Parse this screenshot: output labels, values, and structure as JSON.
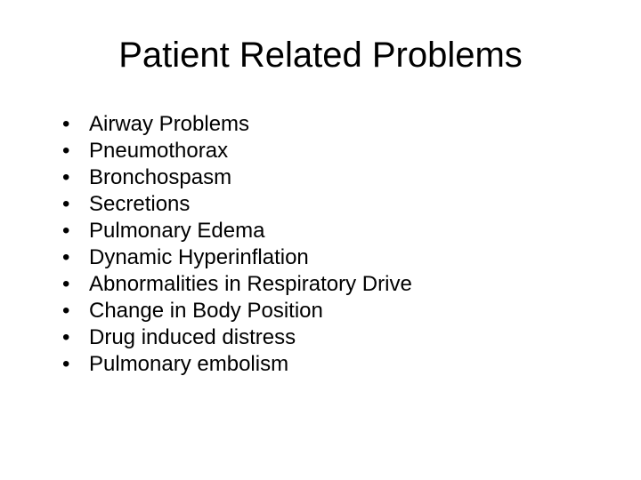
{
  "slide": {
    "title": "Patient Related Problems",
    "title_fontsize": 40,
    "title_color": "#000000",
    "body_fontsize": 24,
    "body_color": "#000000",
    "background_color": "#ffffff",
    "bullet_char": "•",
    "items": [
      "Airway Problems",
      "Pneumothorax",
      "Bronchospasm",
      "Secretions",
      "Pulmonary Edema",
      "Dynamic Hyperinflation",
      "Abnormalities in Respiratory Drive",
      "Change in Body Position",
      "Drug induced distress",
      "Pulmonary embolism"
    ]
  }
}
